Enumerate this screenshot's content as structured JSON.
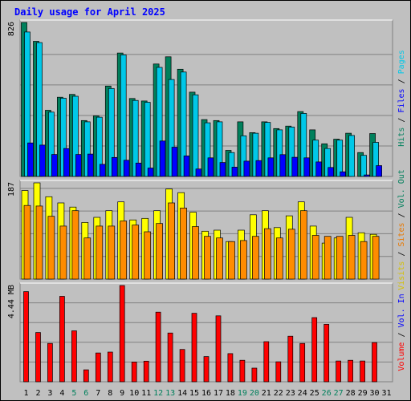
{
  "chart_data": {
    "type": "bar",
    "title": "Daily usage for April 2025",
    "days": [
      "1",
      "2",
      "3",
      "4",
      "5",
      "6",
      "7",
      "8",
      "9",
      "10",
      "11",
      "12",
      "13",
      "14",
      "15",
      "16",
      "17",
      "18",
      "19",
      "20",
      "21",
      "22",
      "23",
      "24",
      "25",
      "26",
      "27",
      "28",
      "29",
      "30",
      "31"
    ],
    "weekend_days": [
      "5",
      "6",
      "12",
      "13",
      "19",
      "20",
      "26",
      "27"
    ],
    "panels": [
      {
        "name": "hits",
        "max_label": "826",
        "ymax": 826,
        "right_labels": [
          "Hits",
          "Files",
          "Pages"
        ],
        "right_label_colors": [
          "#00805c",
          "#0000ff",
          "#00c8e8"
        ],
        "series": [
          {
            "name": "Hits",
            "color": "#00805c",
            "values": [
              826,
              725,
              355,
              425,
              440,
              300,
              325,
              485,
              662,
              418,
              405,
              603,
              642,
              575,
              452,
              305,
              300,
              140,
              293,
              235,
              293,
              257,
              270,
              348,
              250,
              175,
              200,
              232,
              128,
              230,
              0
            ]
          },
          {
            "name": "Files",
            "color": "#00c8e8",
            "values": [
              775,
              718,
              345,
              420,
              430,
              293,
              318,
              472,
              652,
              408,
              398,
              585,
              520,
              560,
              438,
              288,
              293,
              128,
              218,
              232,
              290,
              250,
              265,
              338,
              195,
              150,
              195,
              220,
              113,
              183,
              0
            ]
          },
          {
            "name": "Pages",
            "color": "#0000ff",
            "values": [
              180,
              168,
              118,
              150,
              118,
              120,
              65,
              102,
              87,
              72,
              45,
              190,
              157,
              110,
              40,
              100,
              75,
              50,
              82,
              85,
              100,
              117,
              103,
              100,
              78,
              48,
              25,
              0,
              8,
              58,
              0
            ]
          }
        ]
      },
      {
        "name": "visits",
        "max_label": "187",
        "ymax": 187,
        "right_labels": [
          "Visits",
          "Sites",
          "Vol. Out"
        ],
        "right_label_colors": [
          "#d4c000",
          "#e87800",
          "#00805c"
        ],
        "series": [
          {
            "name": "Visits",
            "color": "#ffff00",
            "values": [
              172,
              187,
              160,
              148,
              140,
              110,
              120,
              133,
              150,
              115,
              118,
              133,
              175,
              168,
              130,
              93,
              95,
              73,
              95,
              125,
              133,
              100,
              123,
              150,
              103,
              70,
              80,
              120,
              90,
              87,
              0
            ]
          },
          {
            "name": "Sites",
            "color": "#ff8c00",
            "values": [
              143,
              142,
              122,
              103,
              133,
              80,
              103,
              103,
              113,
              105,
              92,
              108,
              148,
              138,
              102,
              83,
              80,
              73,
              75,
              83,
              98,
              80,
              97,
              133,
              85,
              83,
              83,
              85,
              73,
              83,
              0
            ]
          }
        ]
      },
      {
        "name": "volume",
        "max_label": "4.44 MB",
        "ymax": 4.44,
        "right_labels": [
          "Volume",
          "Vol. In"
        ],
        "right_label_colors": [
          "#ff0000",
          "#0000ff"
        ],
        "series": [
          {
            "name": "Volume",
            "color": "#ff0000",
            "values": [
              4.16,
              2.27,
              1.77,
              3.94,
              2.35,
              0.55,
              1.33,
              1.37,
              4.44,
              0.91,
              0.95,
              3.21,
              2.25,
              1.49,
              3.16,
              1.16,
              3.04,
              1.3,
              0.99,
              0.63,
              1.85,
              0.92,
              2.1,
              1.77,
              2.96,
              2.65,
              0.96,
              0.99,
              0.96,
              1.81,
              0
            ]
          }
        ]
      }
    ],
    "grid": true
  },
  "colors": {
    "background": "#c0c0c0",
    "title": "#0000ff",
    "axis_text": "#000000",
    "weekday_label": "#000000",
    "weekend_label": "#00805c"
  }
}
